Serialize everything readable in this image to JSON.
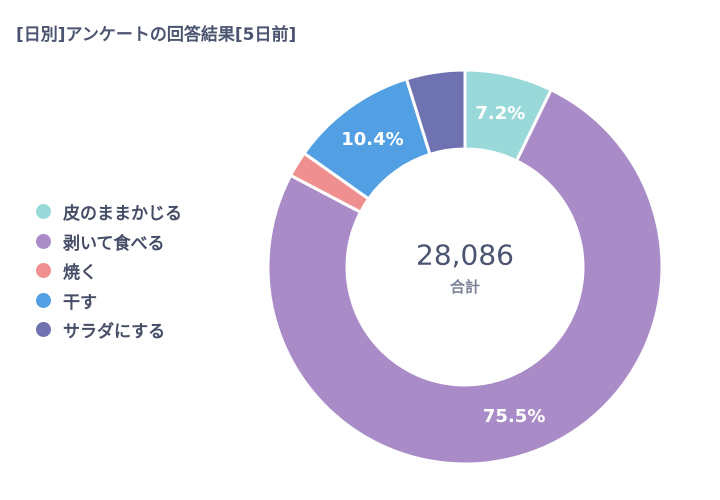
{
  "chart_data": {
    "type": "pie",
    "title": "[日別]アンケートの回答結果[5日前]",
    "total": "28,086",
    "total_label": "合計",
    "legend_position": "left",
    "slices": [
      {
        "name": "皮のままかじる",
        "percent": 7.2,
        "label": "7.2%",
        "color": "#99d9d9"
      },
      {
        "name": "剥いて食べる",
        "percent": 75.5,
        "label": "75.5%",
        "color": "#a98bc7"
      },
      {
        "name": "焼く",
        "percent": 2.1,
        "label": "",
        "color": "#ef8f8f"
      },
      {
        "name": "干す",
        "percent": 10.4,
        "label": "10.4%",
        "color": "#529fe3"
      },
      {
        "name": "サラダにする",
        "percent": 4.8,
        "label": "",
        "color": "#6f72b0"
      }
    ]
  }
}
